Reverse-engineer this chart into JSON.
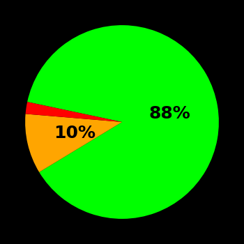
{
  "slices": [
    88,
    10,
    2
  ],
  "colors": [
    "#00ff00",
    "#ffa500",
    "#ff0000"
  ],
  "labels": [
    "88%",
    "10%",
    ""
  ],
  "background_color": "#000000",
  "startangle": 168,
  "label_fontsize": 18,
  "label_fontweight": "bold",
  "label_color": "#000000",
  "label_radii": [
    0.5,
    0.5,
    0.0
  ],
  "counterclock": false
}
